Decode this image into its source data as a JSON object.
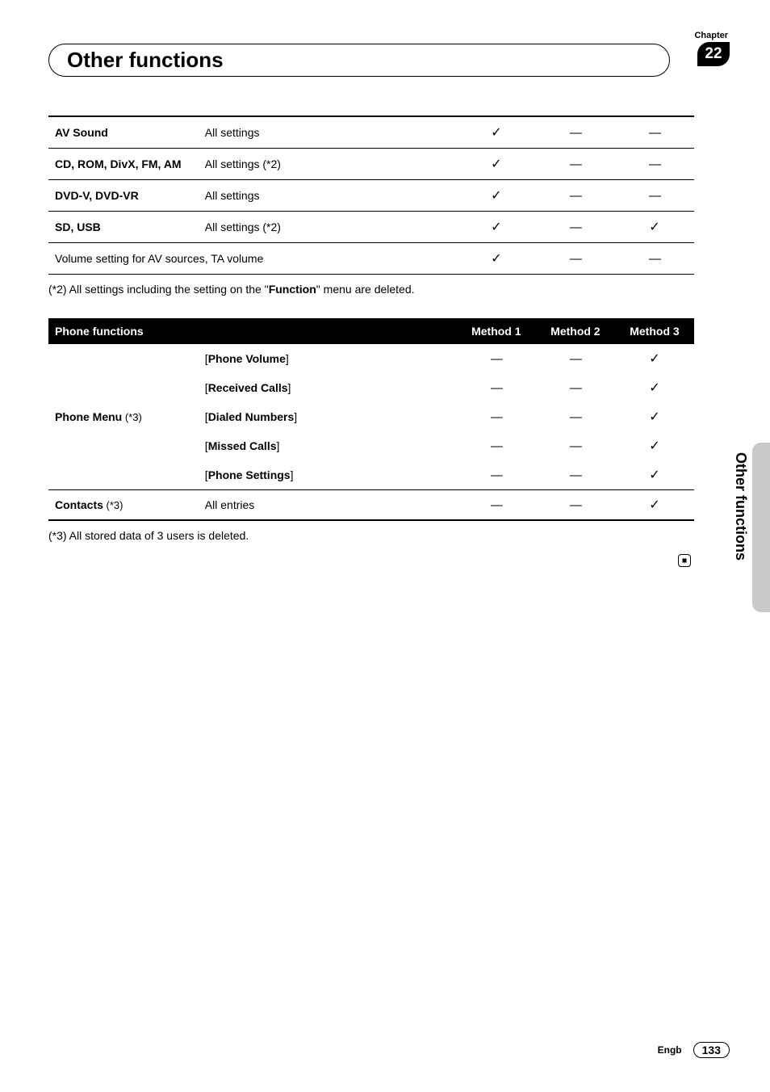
{
  "header": {
    "chapter_label": "Chapter",
    "chapter_number": "22",
    "title": "Other functions"
  },
  "table1": {
    "rows": [
      {
        "label_bold": "AV Sound",
        "desc": "All settings",
        "m1": "✓",
        "m2": "—",
        "m3": "—"
      },
      {
        "label_bold": "CD, ROM, DivX, FM, AM",
        "desc": "All settings (*2)",
        "m1": "✓",
        "m2": "—",
        "m3": "—"
      },
      {
        "label_bold": "DVD-V, DVD-VR",
        "desc": "All settings",
        "m1": "✓",
        "m2": "—",
        "m3": "—"
      },
      {
        "label_bold": "SD, USB",
        "desc": "All settings (*2)",
        "m1": "✓",
        "m2": "—",
        "m3": "✓"
      },
      {
        "label_span": "Volume setting for AV sources, TA volume",
        "m1": "✓",
        "m2": "—",
        "m3": "—"
      }
    ]
  },
  "footnote2_pre": "(*2) All settings including the setting on the \"",
  "footnote2_bold": "Function",
  "footnote2_post": "\" menu are deleted.",
  "table2": {
    "head": {
      "h1": "Phone functions",
      "h2": "",
      "m1": "Method 1",
      "m2": "Method 2",
      "m3": "Method 3"
    },
    "group_label": "Phone Menu",
    "group_suffix": " (*3)",
    "group_rows": [
      {
        "desc": "[Phone Volume]",
        "m1": "—",
        "m2": "—",
        "m3": "✓"
      },
      {
        "desc": "[Received Calls]",
        "m1": "—",
        "m2": "—",
        "m3": "✓"
      },
      {
        "desc": "[Dialed Numbers]",
        "m1": "—",
        "m2": "—",
        "m3": "✓"
      },
      {
        "desc": "[Missed Calls]",
        "m1": "—",
        "m2": "—",
        "m3": "✓"
      },
      {
        "desc": "[Phone Settings]",
        "m1": "—",
        "m2": "—",
        "m3": "✓"
      }
    ],
    "last": {
      "label": "Contacts",
      "suffix": " (*3)",
      "desc": "All entries",
      "m1": "—",
      "m2": "—",
      "m3": "✓"
    }
  },
  "footnote3": "(*3) All stored data of 3 users is deleted.",
  "side_text": "Other functions",
  "footer": {
    "lang": "Engb",
    "page": "133"
  }
}
